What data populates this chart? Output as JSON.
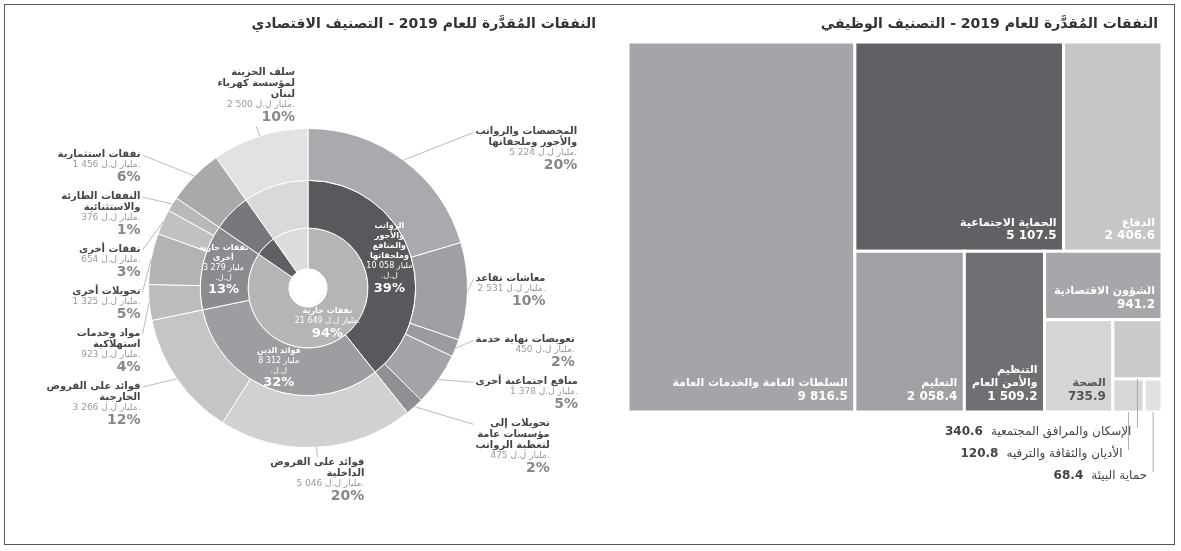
{
  "chart_data": [
    {
      "type": "other",
      "title": "النفقات المُقدَّرة للعام 2019 - التصنيف الوظيفي",
      "categories": [
        "السلطات العامة والخدمات العامة",
        "الحماية الاجتماعية",
        "الدفاع",
        "التعليم",
        "التنظيم والأمن العام",
        "الشؤون الاقتصادية",
        "الصحة",
        "الإسكان والمرافق المجتمعية",
        "الأديان والثقافة والترفيه",
        "حماية البيئة"
      ],
      "values": [
        9816.5,
        5107.5,
        2406.6,
        2058.4,
        1509.2,
        941.2,
        735.9,
        340.6,
        120.8,
        68.4
      ],
      "colors": [
        "#a3a5a8",
        "#5f6164",
        "#c5c6c8",
        "#a0a1a4",
        "#6e7073",
        "#a6a7aa",
        "#d4d5d7",
        "#c9cacc",
        "#d6d7d9",
        "#e0e1e2"
      ],
      "value_labels": [
        "9 816.5",
        "5 107.5",
        "2 406.6",
        "2 058.4",
        "1 509.2",
        "941.2",
        "735.9",
        "340.6",
        "120.8",
        "68.4"
      ]
    },
    {
      "type": "donut",
      "title": "النفقات المُقدَّرة للعام 2019 - التصنيف الاقتصادي",
      "series": [
        {
          "values": [
            21649,
            1456,
            2500
          ],
          "colors": [
            "#b4b5b7",
            "#5e6063",
            "#dcdddf"
          ],
          "value_labels": [
            "نفقات جارية\n21 649 مليار ل.ل.\n94%",
            null,
            null
          ]
        },
        {
          "values": [
            10058,
            8312,
            3279,
            1456,
            2500
          ],
          "colors": [
            "#58595c",
            "#9d9ea1",
            "#8b8c8f",
            "#77787b",
            "#d8d9db"
          ],
          "value_labels": [
            "الرواتب والأجور والمنافع وملحقاتها\n10 058 مليار ل.ل.\n39%",
            "فوائد الدين\n8 312 مليار ل.ل.\n32%",
            "نفقات جارية أخرى\n3 279 مليار ل.ل.\n13%",
            null,
            null
          ]
        },
        {
          "values": [
            5224,
            2531,
            450,
            1378,
            475,
            5046,
            3266,
            923,
            1325,
            654,
            376,
            1456,
            2500
          ],
          "colors": [
            "#a9aaad",
            "#9fa0a3",
            "#9a9b9e",
            "#a3a4a7",
            "#8f9093",
            "#d0d1d3",
            "#c4c5c7",
            "#bbbcbe",
            "#b2b3b5",
            "#c0c1c3",
            "#b8b9bb",
            "#a8a9ab",
            "#e1e2e4"
          ],
          "value_labels": [
            "المخصصات والرواتب والأجور وملحقاتها\n5 224 مليار ل.ل.\n20%",
            "معاشات تقاعد\n2 531 مليار ل.ل.\n10%",
            "تعويضات نهاية خدمة\n450 مليار ل.ل.\n2%",
            "منافع اجتماعية أخرى\n1 378 مليار ل.ل.\n5%",
            "تحويلات إلى مؤسسات عامة لتغطية الرواتب\n475 مليار ل.ل.\n2%",
            "فوائد على القروض الداخلية\n5 046 مليار ل.ل.\n20%",
            "فوائد على القروض الخارجية\n3 266 مليار ل.ل.\n12%",
            "مواد وخدمات استهلاكية\n923 مليار ل.ل.\n4%",
            "تحويلات أخرى\n1 325 مليار ل.ل.\n5%",
            "نفقات أخرى\n654 مليار ل.ل.\n3%",
            "النفقات الطارئة والاستثنائية\n376 مليار ل.ل.\n1%",
            "نفقات استثمارية\n1 456 مليار ل.ل.\n6%",
            "سلف الخزينة لمؤسسة كهرباء لبنان\n2 500 مليار ل.ل.\n10%"
          ]
        }
      ]
    }
  ]
}
